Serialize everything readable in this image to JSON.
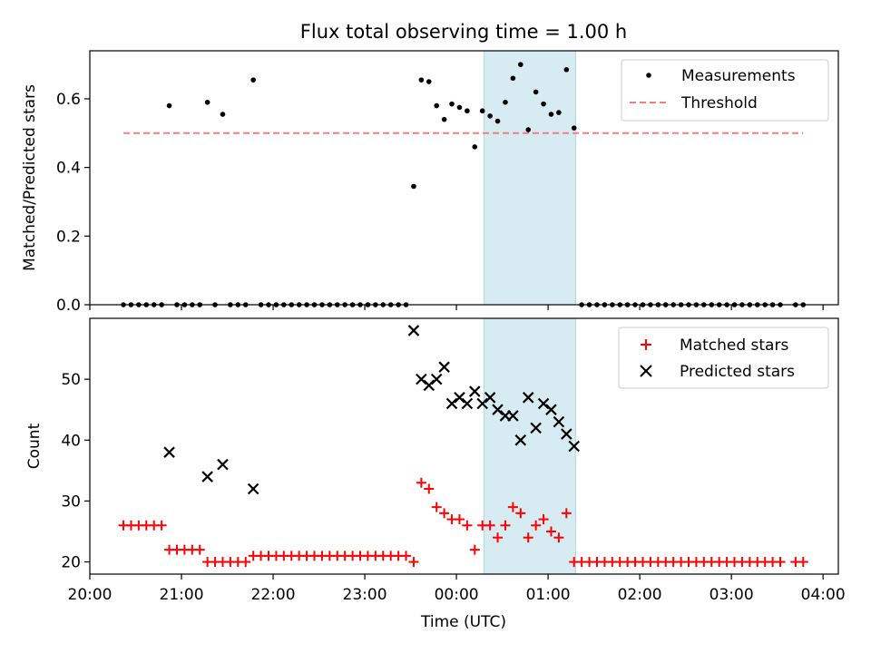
{
  "chart_data": [
    {
      "type": "scatter",
      "title": "Flux total observing time = 1.00 h",
      "ylabel": "Matched/Predicted stars",
      "xlim": [
        "20:00",
        "04:10"
      ],
      "ylim": [
        0,
        0.74
      ],
      "yticks": [
        "0.0",
        "0.2",
        "0.4",
        "0.6"
      ],
      "ytick_values": [
        0,
        0.2,
        0.4,
        0.6
      ],
      "highlight_span": [
        "00:18",
        "01:18"
      ],
      "legend_position": "top-right",
      "series": [
        {
          "name": "Measurements",
          "marker": "dot",
          "color": "#000000",
          "points": [
            [
              "20:22",
              0
            ],
            [
              "20:27",
              0
            ],
            [
              "20:32",
              0
            ],
            [
              "20:37",
              0
            ],
            [
              "20:42",
              0
            ],
            [
              "20:47",
              0
            ],
            [
              "20:52",
              0.58
            ],
            [
              "20:57",
              0
            ],
            [
              "21:02",
              0
            ],
            [
              "21:07",
              0
            ],
            [
              "21:12",
              0
            ],
            [
              "21:17",
              0.59
            ],
            [
              "21:22",
              0
            ],
            [
              "21:27",
              0.555
            ],
            [
              "21:32",
              0
            ],
            [
              "21:37",
              0
            ],
            [
              "21:42",
              0
            ],
            [
              "21:47",
              0.655
            ],
            [
              "21:52",
              0
            ],
            [
              "21:57",
              0
            ],
            [
              "22:02",
              0
            ],
            [
              "22:07",
              0
            ],
            [
              "22:12",
              0
            ],
            [
              "22:17",
              0
            ],
            [
              "22:22",
              0
            ],
            [
              "22:27",
              0
            ],
            [
              "22:32",
              0
            ],
            [
              "22:37",
              0
            ],
            [
              "22:42",
              0
            ],
            [
              "22:47",
              0
            ],
            [
              "22:52",
              0
            ],
            [
              "22:57",
              0
            ],
            [
              "23:02",
              0
            ],
            [
              "23:07",
              0
            ],
            [
              "23:12",
              0
            ],
            [
              "23:17",
              0
            ],
            [
              "23:22",
              0
            ],
            [
              "23:27",
              0
            ],
            [
              "23:32",
              0.345
            ],
            [
              "23:37",
              0.655
            ],
            [
              "23:42",
              0.65
            ],
            [
              "23:47",
              0.58
            ],
            [
              "23:52",
              0.54
            ],
            [
              "23:57",
              0.585
            ],
            [
              "00:02",
              0.575
            ],
            [
              "00:07",
              0.565
            ],
            [
              "00:12",
              0.46
            ],
            [
              "00:17",
              0.565
            ],
            [
              "00:22",
              0.55
            ],
            [
              "00:27",
              0.535
            ],
            [
              "00:32",
              0.59
            ],
            [
              "00:37",
              0.66
            ],
            [
              "00:42",
              0.7
            ],
            [
              "00:47",
              0.51
            ],
            [
              "00:52",
              0.62
            ],
            [
              "00:57",
              0.585
            ],
            [
              "01:02",
              0.555
            ],
            [
              "01:07",
              0.56
            ],
            [
              "01:12",
              0.685
            ],
            [
              "01:17",
              0.515
            ],
            [
              "01:22",
              0
            ],
            [
              "01:27",
              0
            ],
            [
              "01:32",
              0
            ],
            [
              "01:37",
              0
            ],
            [
              "01:42",
              0
            ],
            [
              "01:47",
              0
            ],
            [
              "01:52",
              0
            ],
            [
              "01:57",
              0
            ],
            [
              "02:02",
              0
            ],
            [
              "02:07",
              0
            ],
            [
              "02:12",
              0
            ],
            [
              "02:17",
              0
            ],
            [
              "02:22",
              0
            ],
            [
              "02:27",
              0
            ],
            [
              "02:32",
              0
            ],
            [
              "02:37",
              0
            ],
            [
              "02:42",
              0
            ],
            [
              "02:47",
              0
            ],
            [
              "02:52",
              0
            ],
            [
              "02:57",
              0
            ],
            [
              "03:02",
              0
            ],
            [
              "03:07",
              0
            ],
            [
              "03:12",
              0
            ],
            [
              "03:17",
              0
            ],
            [
              "03:22",
              0
            ],
            [
              "03:27",
              0
            ],
            [
              "03:32",
              0
            ],
            [
              "03:42",
              0
            ],
            [
              "03:47",
              0
            ]
          ]
        },
        {
          "name": "Threshold",
          "marker": "dashed-line",
          "color": "#f08080",
          "points": [
            [
              "20:22",
              0.5
            ],
            [
              "03:47",
              0.5
            ]
          ]
        }
      ]
    },
    {
      "type": "scatter",
      "ylabel": "Count",
      "xlabel": "Time (UTC)",
      "xlim": [
        "20:00",
        "04:10"
      ],
      "ylim": [
        18,
        60
      ],
      "yticks": [
        "20",
        "30",
        "40",
        "50"
      ],
      "ytick_values": [
        20,
        30,
        40,
        50
      ],
      "xticks": [
        "20:00",
        "21:00",
        "22:00",
        "23:00",
        "00:00",
        "01:00",
        "02:00",
        "03:00",
        "04:00"
      ],
      "highlight_span": [
        "00:18",
        "01:18"
      ],
      "legend_position": "top-right",
      "series": [
        {
          "name": "Matched stars",
          "marker": "plus",
          "color": "#ff0000",
          "points": [
            [
              "20:22",
              26
            ],
            [
              "20:27",
              26
            ],
            [
              "20:32",
              26
            ],
            [
              "20:37",
              26
            ],
            [
              "20:42",
              26
            ],
            [
              "20:47",
              26
            ],
            [
              "20:52",
              22
            ],
            [
              "20:57",
              22
            ],
            [
              "21:02",
              22
            ],
            [
              "21:07",
              22
            ],
            [
              "21:12",
              22
            ],
            [
              "21:17",
              20
            ],
            [
              "21:22",
              20
            ],
            [
              "21:27",
              20
            ],
            [
              "21:32",
              20
            ],
            [
              "21:37",
              20
            ],
            [
              "21:42",
              20
            ],
            [
              "21:47",
              21
            ],
            [
              "21:52",
              21
            ],
            [
              "21:57",
              21
            ],
            [
              "22:02",
              21
            ],
            [
              "22:07",
              21
            ],
            [
              "22:12",
              21
            ],
            [
              "22:17",
              21
            ],
            [
              "22:22",
              21
            ],
            [
              "22:27",
              21
            ],
            [
              "22:32",
              21
            ],
            [
              "22:37",
              21
            ],
            [
              "22:42",
              21
            ],
            [
              "22:47",
              21
            ],
            [
              "22:52",
              21
            ],
            [
              "22:57",
              21
            ],
            [
              "23:02",
              21
            ],
            [
              "23:07",
              21
            ],
            [
              "23:12",
              21
            ],
            [
              "23:17",
              21
            ],
            [
              "23:22",
              21
            ],
            [
              "23:27",
              21
            ],
            [
              "23:32",
              20
            ],
            [
              "23:37",
              33
            ],
            [
              "23:42",
              32
            ],
            [
              "23:47",
              29
            ],
            [
              "23:52",
              28
            ],
            [
              "23:57",
              27
            ],
            [
              "00:02",
              27
            ],
            [
              "00:07",
              26
            ],
            [
              "00:12",
              22
            ],
            [
              "00:17",
              26
            ],
            [
              "00:22",
              26
            ],
            [
              "00:27",
              24
            ],
            [
              "00:32",
              26
            ],
            [
              "00:37",
              29
            ],
            [
              "00:42",
              28
            ],
            [
              "00:47",
              24
            ],
            [
              "00:52",
              26
            ],
            [
              "00:57",
              27
            ],
            [
              "01:02",
              25
            ],
            [
              "01:07",
              24
            ],
            [
              "01:12",
              28
            ],
            [
              "01:17",
              20
            ],
            [
              "01:22",
              20
            ],
            [
              "01:27",
              20
            ],
            [
              "01:32",
              20
            ],
            [
              "01:37",
              20
            ],
            [
              "01:42",
              20
            ],
            [
              "01:47",
              20
            ],
            [
              "01:52",
              20
            ],
            [
              "01:57",
              20
            ],
            [
              "02:02",
              20
            ],
            [
              "02:07",
              20
            ],
            [
              "02:12",
              20
            ],
            [
              "02:17",
              20
            ],
            [
              "02:22",
              20
            ],
            [
              "02:27",
              20
            ],
            [
              "02:32",
              20
            ],
            [
              "02:37",
              20
            ],
            [
              "02:42",
              20
            ],
            [
              "02:47",
              20
            ],
            [
              "02:52",
              20
            ],
            [
              "02:57",
              20
            ],
            [
              "03:02",
              20
            ],
            [
              "03:07",
              20
            ],
            [
              "03:12",
              20
            ],
            [
              "03:17",
              20
            ],
            [
              "03:22",
              20
            ],
            [
              "03:27",
              20
            ],
            [
              "03:32",
              20
            ],
            [
              "03:42",
              20
            ],
            [
              "03:47",
              20
            ]
          ]
        },
        {
          "name": "Predicted stars",
          "marker": "x",
          "color": "#000000",
          "points": [
            [
              "20:52",
              38
            ],
            [
              "21:17",
              34
            ],
            [
              "21:27",
              36
            ],
            [
              "21:47",
              32
            ],
            [
              "23:32",
              58
            ],
            [
              "23:37",
              50
            ],
            [
              "23:42",
              49
            ],
            [
              "23:47",
              50
            ],
            [
              "23:52",
              52
            ],
            [
              "23:57",
              46
            ],
            [
              "00:02",
              47
            ],
            [
              "00:07",
              46
            ],
            [
              "00:12",
              48
            ],
            [
              "00:17",
              46
            ],
            [
              "00:22",
              47
            ],
            [
              "00:27",
              45
            ],
            [
              "00:32",
              44
            ],
            [
              "00:37",
              44
            ],
            [
              "00:42",
              40
            ],
            [
              "00:47",
              47
            ],
            [
              "00:52",
              42
            ],
            [
              "00:57",
              46
            ],
            [
              "01:02",
              45
            ],
            [
              "01:07",
              43
            ],
            [
              "01:12",
              41
            ],
            [
              "01:17",
              39
            ]
          ]
        }
      ]
    }
  ]
}
